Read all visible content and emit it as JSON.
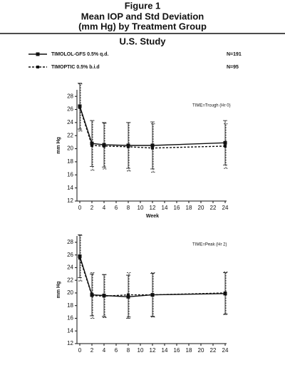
{
  "header": {
    "title_lines": [
      "Figure 1",
      "Mean IOP and Std Deviation",
      "(mm Hg) by Treatment Group"
    ],
    "study": "U.S. Study"
  },
  "chart_data": [
    {
      "type": "line",
      "annotation": "TIME=Trough (Hr 0)",
      "x_label": "Week",
      "y_label": "mm Hg",
      "x": [
        0,
        2,
        4,
        8,
        12,
        24
      ],
      "series": [
        {
          "name": "TIMOLOL-GFS 0.5% q.d.",
          "n_label": "N=191",
          "color": "#111111",
          "dash": false,
          "values": [
            26.5,
            20.8,
            20.6,
            20.5,
            20.5,
            20.9
          ],
          "errors": [
            3.5,
            3.5,
            3.4,
            3.5,
            3.6,
            3.4
          ]
        },
        {
          "name": "TIMOPTIC 0.5% b.i.d",
          "n_label": "N=95",
          "color": "#111111",
          "dash": true,
          "values": [
            26.3,
            20.5,
            20.4,
            20.3,
            20.1,
            20.4
          ],
          "errors": [
            3.6,
            3.8,
            3.5,
            3.7,
            3.7,
            3.4
          ]
        }
      ],
      "xlim": [
        0,
        24
      ],
      "xticks": [
        0,
        2,
        4,
        6,
        8,
        10,
        12,
        14,
        16,
        18,
        20,
        22,
        24
      ],
      "ylim": [
        12,
        29
      ],
      "yticks": [
        12,
        14,
        16,
        18,
        20,
        22,
        24,
        26,
        28
      ]
    },
    {
      "type": "line",
      "annotation": "TIME=Peak (Hr 2)",
      "y_label": "mm Hg",
      "x": [
        0,
        2,
        4,
        8,
        12,
        24
      ],
      "series": [
        {
          "color": "#111111",
          "dash": false,
          "values": [
            25.8,
            19.7,
            19.6,
            19.4,
            19.7,
            19.9
          ],
          "errors": [
            3.4,
            3.3,
            3.3,
            3.4,
            3.4,
            3.3
          ]
        },
        {
          "color": "#111111",
          "dash": true,
          "values": [
            25.5,
            19.6,
            19.5,
            19.7,
            19.7,
            20.0
          ],
          "errors": [
            3.6,
            3.6,
            3.4,
            3.5,
            3.5,
            3.3
          ]
        }
      ],
      "xlim": [
        0,
        24
      ],
      "xticks": [
        0,
        2,
        4,
        6,
        8,
        10,
        12,
        14,
        16,
        18,
        20,
        22,
        24
      ],
      "ylim": [
        12,
        29
      ],
      "yticks": [
        12,
        14,
        16,
        18,
        20,
        22,
        24,
        26,
        28
      ]
    }
  ]
}
